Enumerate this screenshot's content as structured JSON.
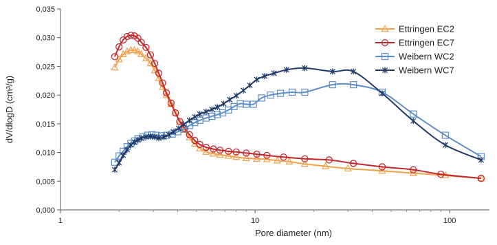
{
  "chart_data": {
    "type": "line",
    "title": "",
    "xlabel": "Pore diameter (nm)",
    "ylabel": "dV/dlogD (cm³/g)",
    "x_scale": "log",
    "xlim": [
      1,
      160
    ],
    "ylim": [
      0,
      0.035
    ],
    "x_ticks": [
      1,
      10,
      100
    ],
    "x_tick_labels": [
      "1",
      "10",
      "100"
    ],
    "y_ticks": [
      0,
      0.005,
      0.01,
      0.015,
      0.02,
      0.025,
      0.03,
      0.035
    ],
    "y_tick_labels": [
      "0,000",
      "0,005",
      "0,010",
      "0,015",
      "0,020",
      "0,025",
      "0,030",
      "0,035"
    ],
    "grid": "none",
    "legend_position": "top-right",
    "series": [
      {
        "name": "Ettringen EC2",
        "color": "#F5A04A",
        "marker": "triangle",
        "x": [
          1.9,
          2.0,
          2.1,
          2.2,
          2.3,
          2.4,
          2.5,
          2.6,
          2.75,
          2.9,
          3.05,
          3.2,
          3.35,
          3.5,
          3.7,
          3.9,
          4.1,
          4.35,
          4.6,
          4.9,
          5.2,
          5.6,
          6.1,
          6.6,
          7.3,
          8.0,
          9.0,
          10.2,
          11.5,
          13.0,
          15.0,
          18.0,
          23.0,
          30.0,
          45.0,
          65.0,
          95.0,
          145.0
        ],
        "y": [
          0.0248,
          0.0262,
          0.0271,
          0.0276,
          0.0278,
          0.0278,
          0.0276,
          0.0271,
          0.0264,
          0.0255,
          0.0243,
          0.0229,
          0.0214,
          0.02,
          0.0184,
          0.0169,
          0.0153,
          0.0139,
          0.0126,
          0.0115,
          0.0107,
          0.0101,
          0.0098,
          0.0096,
          0.0094,
          0.0092,
          0.009,
          0.0089,
          0.0088,
          0.0086,
          0.0084,
          0.008,
          0.0076,
          0.0072,
          0.0068,
          0.0064,
          0.006,
          0.0055
        ]
      },
      {
        "name": "Ettringen EC7",
        "color": "#C0282E",
        "marker": "circle",
        "x": [
          1.9,
          2.0,
          2.1,
          2.2,
          2.3,
          2.4,
          2.5,
          2.6,
          2.75,
          2.9,
          3.05,
          3.2,
          3.35,
          3.5,
          3.7,
          3.9,
          4.1,
          4.35,
          4.6,
          4.9,
          5.2,
          5.6,
          6.1,
          6.6,
          7.3,
          8.0,
          9.0,
          10.2,
          11.5,
          14.0,
          18.0,
          24.0,
          32.0,
          45.0,
          65.0,
          90.0,
          145.0
        ],
        "y": [
          0.0267,
          0.0284,
          0.0296,
          0.0302,
          0.0304,
          0.0303,
          0.0299,
          0.0292,
          0.0283,
          0.027,
          0.0255,
          0.0238,
          0.0221,
          0.0204,
          0.0186,
          0.0169,
          0.0154,
          0.0142,
          0.0131,
          0.0121,
          0.0114,
          0.0109,
          0.0106,
          0.0104,
          0.0102,
          0.0101,
          0.0099,
          0.0097,
          0.0095,
          0.0092,
          0.0089,
          0.0087,
          0.0081,
          0.0075,
          0.007,
          0.0062,
          0.0055
        ]
      },
      {
        "name": "Weibern WC2",
        "color": "#5B8DC8",
        "marker": "square",
        "x": [
          1.9,
          2.0,
          2.1,
          2.2,
          2.3,
          2.4,
          2.5,
          2.65,
          2.8,
          2.95,
          3.1,
          3.3,
          3.5,
          3.75,
          4.0,
          4.3,
          4.6,
          4.9,
          5.2,
          5.6,
          6.0,
          6.4,
          6.8,
          7.3,
          7.8,
          8.4,
          9.0,
          9.8,
          10.8,
          12.0,
          13.5,
          15.5,
          18.0,
          25.0,
          32.0,
          45.0,
          65.0,
          95.0,
          145.0
        ],
        "y": [
          0.0083,
          0.0094,
          0.0102,
          0.011,
          0.0116,
          0.012,
          0.0124,
          0.0127,
          0.013,
          0.0131,
          0.013,
          0.0129,
          0.013,
          0.0132,
          0.0136,
          0.0141,
          0.0147,
          0.0152,
          0.0156,
          0.016,
          0.0163,
          0.0166,
          0.0169,
          0.0174,
          0.018,
          0.0185,
          0.0184,
          0.0184,
          0.0195,
          0.02,
          0.0203,
          0.0205,
          0.0205,
          0.0218,
          0.0218,
          0.0205,
          0.0167,
          0.013,
          0.0093
        ]
      },
      {
        "name": "Weibern WC7",
        "color": "#1F3A68",
        "marker": "star",
        "x": [
          1.9,
          2.0,
          2.1,
          2.2,
          2.3,
          2.4,
          2.5,
          2.6,
          2.75,
          2.9,
          3.05,
          3.2,
          3.4,
          3.6,
          3.8,
          4.05,
          4.3,
          4.6,
          4.9,
          5.2,
          5.6,
          6.0,
          6.4,
          6.9,
          7.4,
          8.0,
          8.7,
          9.4,
          10.2,
          11.2,
          12.5,
          14.5,
          18.0,
          25.0,
          32.0,
          45.0,
          65.0,
          95.0,
          145.0
        ],
        "y": [
          0.007,
          0.0082,
          0.0095,
          0.0105,
          0.0113,
          0.0118,
          0.0122,
          0.0125,
          0.0127,
          0.0128,
          0.0127,
          0.0125,
          0.0127,
          0.0131,
          0.0136,
          0.0142,
          0.0149,
          0.0156,
          0.0162,
          0.0167,
          0.0171,
          0.0175,
          0.0179,
          0.0185,
          0.0192,
          0.0199,
          0.0208,
          0.0217,
          0.0227,
          0.0233,
          0.0238,
          0.0244,
          0.0247,
          0.0241,
          0.0241,
          0.0203,
          0.0155,
          0.0113,
          0.0087
        ]
      }
    ]
  }
}
